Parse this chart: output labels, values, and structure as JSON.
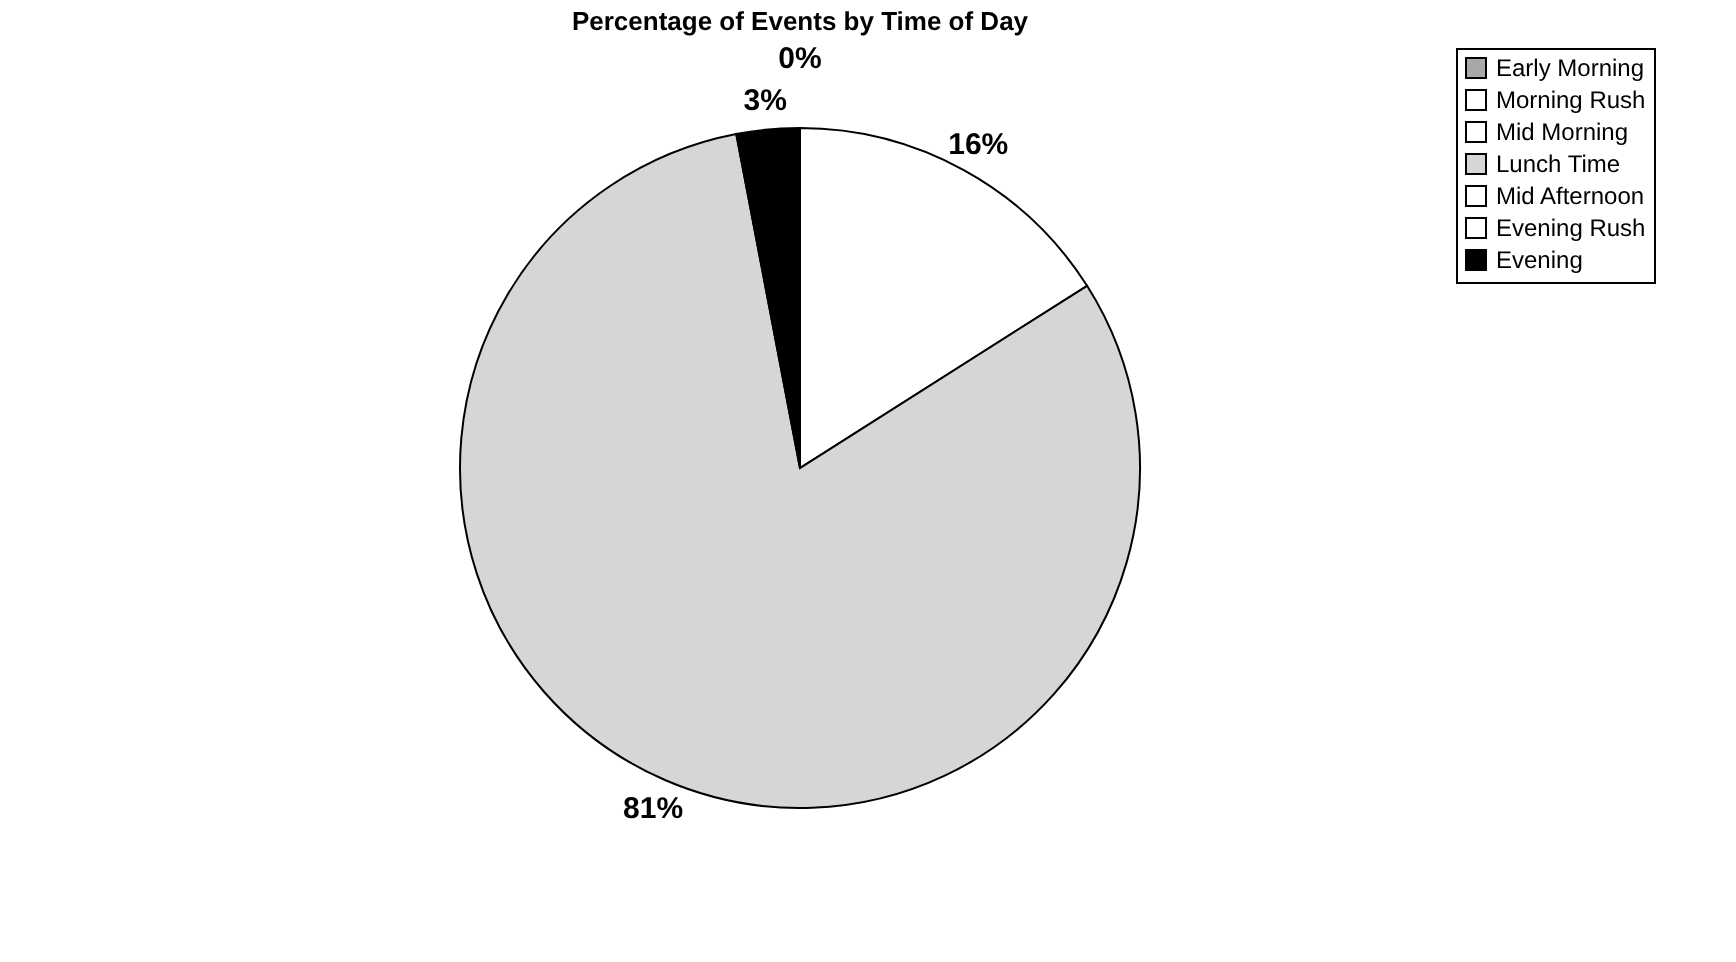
{
  "chart_data": {
    "type": "pie",
    "title": "Percentage of Events by Time of Day",
    "categories": [
      "Early Morning",
      "Morning Rush",
      "Mid Morning",
      "Lunch Time",
      "Mid Afternoon",
      "Evening Rush",
      "Evening"
    ],
    "values": [
      0,
      16,
      0,
      81,
      0,
      0,
      3
    ],
    "value_labels": [
      null,
      "16%",
      null,
      "81%",
      null,
      "0%",
      "3%"
    ],
    "colors": [
      "#a8a8a8",
      "#ffffff",
      "#ffffff",
      "#d6d6d6",
      "#ffffff",
      "#ffffff",
      "#000000"
    ],
    "legend": "right"
  }
}
